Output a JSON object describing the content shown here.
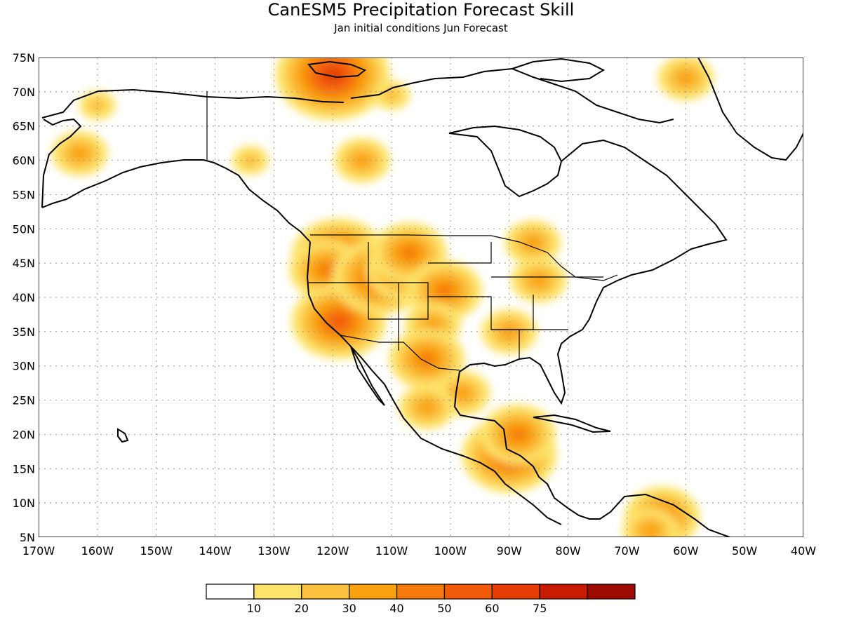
{
  "title": "CanESM5 Precipitation Forecast Skill",
  "subtitle": "Jan initial conditions  Jun Forecast",
  "lat_labels": [
    "75N",
    "70N",
    "65N",
    "60N",
    "55N",
    "50N",
    "45N",
    "40N",
    "35N",
    "30N",
    "25N",
    "20N",
    "15N",
    "10N",
    "5N"
  ],
  "lon_labels": [
    "170W",
    "160W",
    "150W",
    "140W",
    "130W",
    "120W",
    "110W",
    "100W",
    "90W",
    "80W",
    "70W",
    "60W",
    "50W",
    "40W"
  ],
  "colorbar": {
    "colors": [
      "#ffffff",
      "#fde36b",
      "#fbc03e",
      "#f9a10e",
      "#f77b0c",
      "#f15a08",
      "#e53d04",
      "#c91b02",
      "#9c0a00"
    ],
    "labels": [
      "10",
      "20",
      "30",
      "40",
      "50",
      "60",
      "75"
    ]
  },
  "chart_data": {
    "type": "heatmap",
    "title": "CanESM5 Precipitation Forecast Skill",
    "subtitle": "Jan initial conditions  Jun Forecast",
    "lat_range": [
      5,
      75
    ],
    "lon_range": [
      -170,
      -40
    ],
    "grid": true,
    "skill_blobs": [
      {
        "lon": -119,
        "lat": 46,
        "value": 50
      },
      {
        "lon": -121,
        "lat": 44,
        "value": 40
      },
      {
        "lon": -119,
        "lat": 36.5,
        "value": 50
      },
      {
        "lon": -112,
        "lat": 43,
        "value": 50
      },
      {
        "lon": -108,
        "lat": 44,
        "value": 40
      },
      {
        "lon": -107,
        "lat": 46.5,
        "value": 40
      },
      {
        "lon": -101,
        "lat": 41,
        "value": 40
      },
      {
        "lon": -103,
        "lat": 36,
        "value": 30
      },
      {
        "lon": -104,
        "lat": 31,
        "value": 40
      },
      {
        "lon": -98,
        "lat": 26,
        "value": 30
      },
      {
        "lon": -104,
        "lat": 24,
        "value": 30
      },
      {
        "lon": -90,
        "lat": 17,
        "value": 50
      },
      {
        "lon": -88.5,
        "lat": 20,
        "value": 40
      },
      {
        "lon": -64,
        "lat": 8,
        "value": 40
      },
      {
        "lon": -66,
        "lat": 6,
        "value": 30
      },
      {
        "lon": -120,
        "lat": 72.5,
        "value": 60
      },
      {
        "lon": -163,
        "lat": 61,
        "value": 30
      },
      {
        "lon": -115,
        "lat": 60,
        "value": 30
      },
      {
        "lon": -60,
        "lat": 72,
        "value": 30
      },
      {
        "lon": -86,
        "lat": 48,
        "value": 30
      },
      {
        "lon": -90,
        "lat": 35,
        "value": 30
      },
      {
        "lon": -85,
        "lat": 42.5,
        "value": 30
      },
      {
        "lon": -160,
        "lat": 68,
        "value": 20
      },
      {
        "lon": -134,
        "lat": 60,
        "value": 20
      },
      {
        "lon": -110,
        "lat": 69.5,
        "value": 20
      }
    ]
  }
}
